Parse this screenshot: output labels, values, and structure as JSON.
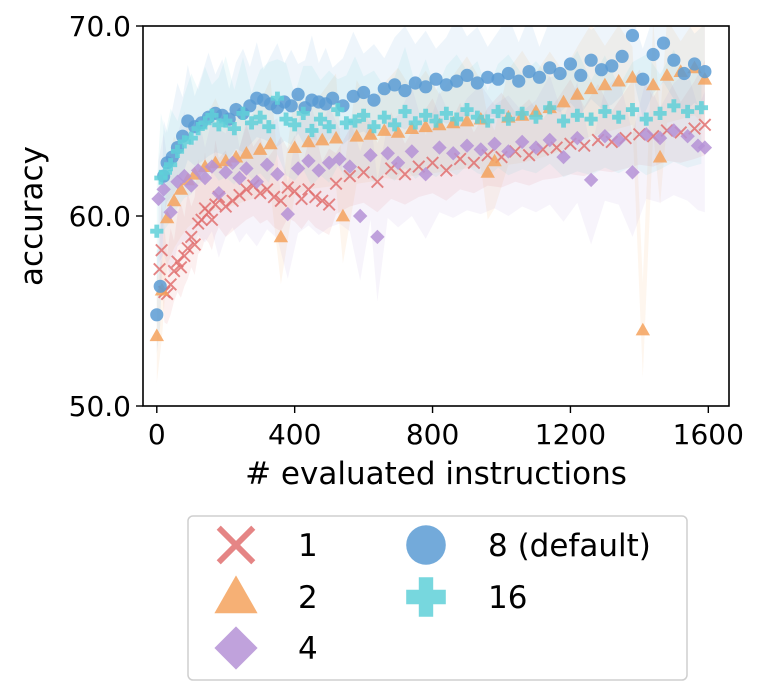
{
  "chart_data": {
    "type": "scatter",
    "title": "",
    "xlabel": "# evaluated instructions",
    "ylabel": "accuracy",
    "xlim": [
      -40,
      1660
    ],
    "ylim": [
      50.0,
      70.0
    ],
    "xticks": [
      "0",
      "400",
      "800",
      "1200",
      "1600"
    ],
    "xtick_values": [
      0,
      400,
      800,
      1200,
      1600
    ],
    "yticks": [
      "50.0",
      "60.0",
      "70.0"
    ],
    "ytick_values": [
      50,
      60,
      70
    ],
    "grid": false,
    "legend_position": "bottom (outside, 2 columns)",
    "series": [
      {
        "name": "1",
        "marker": "x",
        "color": "#e07070",
        "points": [
          [
            8,
            57.2
          ],
          [
            14,
            58.2
          ],
          [
            22,
            56.0
          ],
          [
            30,
            55.9
          ],
          [
            40,
            56.4
          ],
          [
            50,
            57.1
          ],
          [
            60,
            57.6
          ],
          [
            70,
            57.3
          ],
          [
            80,
            57.9
          ],
          [
            90,
            58.3
          ],
          [
            100,
            58.9
          ],
          [
            110,
            58.5
          ],
          [
            120,
            59.6
          ],
          [
            130,
            59.8
          ],
          [
            140,
            60.4
          ],
          [
            150,
            60.2
          ],
          [
            160,
            59.8
          ],
          [
            170,
            60.6
          ],
          [
            180,
            61.0
          ],
          [
            200,
            60.5
          ],
          [
            220,
            60.8
          ],
          [
            240,
            61.1
          ],
          [
            260,
            61.4
          ],
          [
            280,
            61.6
          ],
          [
            300,
            61.2
          ],
          [
            320,
            61.4
          ],
          [
            340,
            61.0
          ],
          [
            360,
            60.8
          ],
          [
            380,
            61.5
          ],
          [
            400,
            61.3
          ],
          [
            420,
            60.9
          ],
          [
            440,
            61.4
          ],
          [
            460,
            61.0
          ],
          [
            480,
            60.8
          ],
          [
            500,
            60.6
          ],
          [
            520,
            61.7
          ],
          [
            560,
            62.1
          ],
          [
            600,
            62.3
          ],
          [
            640,
            61.8
          ],
          [
            680,
            62.5
          ],
          [
            720,
            62.2
          ],
          [
            760,
            62.6
          ],
          [
            800,
            62.8
          ],
          [
            840,
            62.4
          ],
          [
            880,
            63.0
          ],
          [
            920,
            62.8
          ],
          [
            960,
            63.2
          ],
          [
            1000,
            63.1
          ],
          [
            1040,
            63.4
          ],
          [
            1080,
            63.2
          ],
          [
            1120,
            63.5
          ],
          [
            1160,
            63.6
          ],
          [
            1200,
            63.8
          ],
          [
            1240,
            63.7
          ],
          [
            1280,
            64.0
          ],
          [
            1320,
            63.9
          ],
          [
            1360,
            64.1
          ],
          [
            1400,
            64.3
          ],
          [
            1440,
            64.2
          ],
          [
            1480,
            64.5
          ],
          [
            1520,
            64.4
          ],
          [
            1560,
            64.6
          ],
          [
            1590,
            64.8
          ]
        ]
      },
      {
        "name": "2",
        "marker": "triangle",
        "color": "#f5a25d",
        "points": [
          [
            0,
            53.7
          ],
          [
            15,
            56.1
          ],
          [
            30,
            59.9
          ],
          [
            50,
            60.8
          ],
          [
            70,
            61.4
          ],
          [
            90,
            61.9
          ],
          [
            110,
            62.2
          ],
          [
            140,
            62.6
          ],
          [
            170,
            62.8
          ],
          [
            200,
            62.9
          ],
          [
            230,
            63.1
          ],
          [
            260,
            63.3
          ],
          [
            300,
            63.5
          ],
          [
            330,
            63.8
          ],
          [
            360,
            58.9
          ],
          [
            400,
            63.6
          ],
          [
            440,
            63.9
          ],
          [
            480,
            64.0
          ],
          [
            520,
            64.1
          ],
          [
            540,
            60.0
          ],
          [
            580,
            64.2
          ],
          [
            620,
            64.3
          ],
          [
            660,
            64.5
          ],
          [
            700,
            64.4
          ],
          [
            740,
            64.6
          ],
          [
            780,
            64.7
          ],
          [
            820,
            64.8
          ],
          [
            860,
            64.9
          ],
          [
            900,
            65.0
          ],
          [
            940,
            65.1
          ],
          [
            960,
            62.3
          ],
          [
            980,
            62.9
          ],
          [
            1020,
            65.2
          ],
          [
            1060,
            65.3
          ],
          [
            1100,
            65.5
          ],
          [
            1140,
            65.7
          ],
          [
            1180,
            66.0
          ],
          [
            1220,
            66.4
          ],
          [
            1260,
            66.7
          ],
          [
            1300,
            66.9
          ],
          [
            1340,
            67.1
          ],
          [
            1380,
            67.3
          ],
          [
            1410,
            54.0
          ],
          [
            1440,
            66.9
          ],
          [
            1460,
            63.1
          ],
          [
            1480,
            67.4
          ],
          [
            1520,
            67.6
          ],
          [
            1560,
            67.8
          ],
          [
            1590,
            67.2
          ]
        ]
      },
      {
        "name": "4",
        "marker": "diamond",
        "color": "#b592d6",
        "points": [
          [
            5,
            60.9
          ],
          [
            20,
            61.4
          ],
          [
            40,
            60.2
          ],
          [
            60,
            61.8
          ],
          [
            80,
            62.1
          ],
          [
            100,
            61.6
          ],
          [
            120,
            62.4
          ],
          [
            140,
            62.0
          ],
          [
            160,
            62.6
          ],
          [
            180,
            61.2
          ],
          [
            200,
            62.3
          ],
          [
            220,
            62.8
          ],
          [
            240,
            62.0
          ],
          [
            260,
            62.5
          ],
          [
            290,
            61.8
          ],
          [
            320,
            62.7
          ],
          [
            350,
            62.2
          ],
          [
            380,
            60.1
          ],
          [
            410,
            62.5
          ],
          [
            440,
            62.9
          ],
          [
            470,
            62.4
          ],
          [
            500,
            62.8
          ],
          [
            530,
            63.0
          ],
          [
            560,
            62.6
          ],
          [
            590,
            60.0
          ],
          [
            620,
            63.2
          ],
          [
            640,
            58.9
          ],
          [
            670,
            63.3
          ],
          [
            700,
            62.8
          ],
          [
            740,
            63.4
          ],
          [
            780,
            62.2
          ],
          [
            820,
            63.6
          ],
          [
            860,
            63.3
          ],
          [
            900,
            63.7
          ],
          [
            940,
            63.5
          ],
          [
            980,
            63.8
          ],
          [
            1020,
            63.4
          ],
          [
            1060,
            63.9
          ],
          [
            1100,
            63.6
          ],
          [
            1140,
            64.0
          ],
          [
            1180,
            63.1
          ],
          [
            1220,
            64.1
          ],
          [
            1260,
            61.9
          ],
          [
            1300,
            64.2
          ],
          [
            1340,
            64.0
          ],
          [
            1380,
            62.3
          ],
          [
            1420,
            64.3
          ],
          [
            1460,
            64.1
          ],
          [
            1500,
            64.5
          ],
          [
            1540,
            64.2
          ],
          [
            1570,
            63.7
          ],
          [
            1590,
            63.6
          ]
        ]
      },
      {
        "name": "8 (default)",
        "marker": "circle",
        "color": "#5a9bd4",
        "points": [
          [
            0,
            54.8
          ],
          [
            10,
            56.3
          ],
          [
            20,
            62.1
          ],
          [
            30,
            62.8
          ],
          [
            45,
            63.1
          ],
          [
            60,
            63.6
          ],
          [
            75,
            64.2
          ],
          [
            90,
            65.0
          ],
          [
            110,
            64.7
          ],
          [
            130,
            64.9
          ],
          [
            150,
            65.2
          ],
          [
            170,
            65.4
          ],
          [
            190,
            65.3
          ],
          [
            210,
            65.1
          ],
          [
            230,
            65.6
          ],
          [
            250,
            65.4
          ],
          [
            270,
            65.8
          ],
          [
            290,
            66.2
          ],
          [
            310,
            66.1
          ],
          [
            330,
            65.9
          ],
          [
            350,
            65.7
          ],
          [
            370,
            66.0
          ],
          [
            390,
            65.8
          ],
          [
            410,
            66.4
          ],
          [
            430,
            65.7
          ],
          [
            450,
            66.1
          ],
          [
            470,
            66.0
          ],
          [
            490,
            65.9
          ],
          [
            510,
            66.2
          ],
          [
            540,
            65.8
          ],
          [
            570,
            66.3
          ],
          [
            600,
            66.5
          ],
          [
            630,
            66.1
          ],
          [
            660,
            66.7
          ],
          [
            690,
            66.9
          ],
          [
            720,
            66.6
          ],
          [
            750,
            67.0
          ],
          [
            780,
            66.8
          ],
          [
            810,
            67.2
          ],
          [
            840,
            66.9
          ],
          [
            870,
            67.1
          ],
          [
            900,
            67.4
          ],
          [
            930,
            67.0
          ],
          [
            960,
            67.3
          ],
          [
            990,
            67.2
          ],
          [
            1020,
            67.5
          ],
          [
            1050,
            67.1
          ],
          [
            1080,
            67.6
          ],
          [
            1110,
            67.3
          ],
          [
            1140,
            67.8
          ],
          [
            1170,
            67.5
          ],
          [
            1200,
            68.0
          ],
          [
            1230,
            67.4
          ],
          [
            1260,
            68.2
          ],
          [
            1290,
            67.7
          ],
          [
            1320,
            67.9
          ],
          [
            1350,
            68.4
          ],
          [
            1380,
            69.5
          ],
          [
            1410,
            67.2
          ],
          [
            1440,
            68.5
          ],
          [
            1470,
            69.1
          ],
          [
            1500,
            68.2
          ],
          [
            1530,
            67.5
          ],
          [
            1560,
            68.0
          ],
          [
            1590,
            67.6
          ]
        ]
      },
      {
        "name": "16",
        "marker": "plus",
        "color": "#5fd0d8",
        "points": [
          [
            0,
            59.2
          ],
          [
            12,
            62.0
          ],
          [
            25,
            62.3
          ],
          [
            40,
            62.7
          ],
          [
            60,
            63.4
          ],
          [
            80,
            63.9
          ],
          [
            100,
            64.1
          ],
          [
            120,
            64.6
          ],
          [
            140,
            64.9
          ],
          [
            160,
            65.3
          ],
          [
            180,
            64.8
          ],
          [
            200,
            65.0
          ],
          [
            225,
            64.6
          ],
          [
            250,
            65.4
          ],
          [
            275,
            64.9
          ],
          [
            300,
            65.2
          ],
          [
            325,
            64.7
          ],
          [
            350,
            66.2
          ],
          [
            375,
            65.1
          ],
          [
            400,
            64.8
          ],
          [
            425,
            65.4
          ],
          [
            450,
            64.5
          ],
          [
            475,
            65.1
          ],
          [
            500,
            64.7
          ],
          [
            525,
            65.6
          ],
          [
            550,
            64.9
          ],
          [
            575,
            65.0
          ],
          [
            600,
            65.3
          ],
          [
            630,
            64.7
          ],
          [
            660,
            65.2
          ],
          [
            690,
            64.8
          ],
          [
            720,
            65.5
          ],
          [
            750,
            64.9
          ],
          [
            780,
            65.3
          ],
          [
            810,
            65.0
          ],
          [
            840,
            65.4
          ],
          [
            870,
            65.1
          ],
          [
            900,
            65.6
          ],
          [
            930,
            65.2
          ],
          [
            960,
            65.0
          ],
          [
            990,
            65.5
          ],
          [
            1020,
            65.1
          ],
          [
            1060,
            65.4
          ],
          [
            1100,
            65.2
          ],
          [
            1140,
            65.7
          ],
          [
            1180,
            65.0
          ],
          [
            1220,
            65.3
          ],
          [
            1260,
            65.1
          ],
          [
            1300,
            65.5
          ],
          [
            1340,
            65.2
          ],
          [
            1380,
            65.6
          ],
          [
            1420,
            65.1
          ],
          [
            1460,
            65.4
          ],
          [
            1500,
            65.8
          ],
          [
            1540,
            65.5
          ],
          [
            1580,
            65.7
          ]
        ]
      }
    ]
  }
}
